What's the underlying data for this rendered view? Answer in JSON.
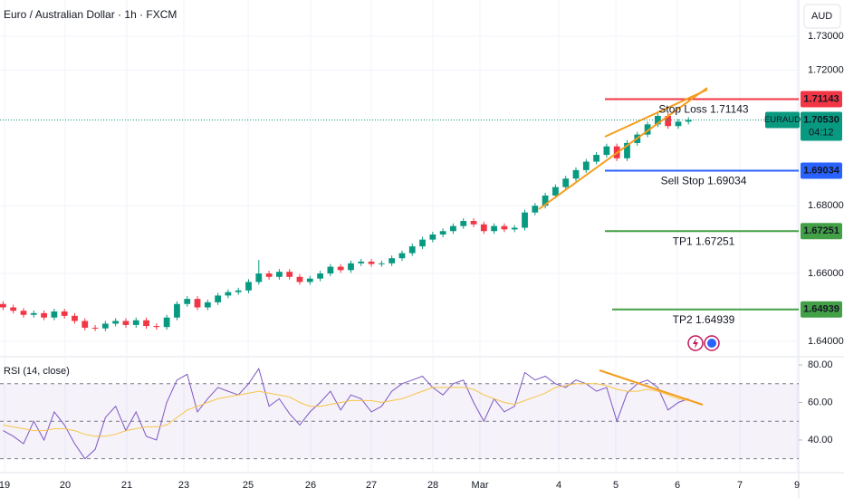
{
  "chart_data": [
    {
      "type": "candlestick",
      "title": "Euro / Australian Dollar · 1h · FXCM",
      "currency": "AUD",
      "x": [
        0,
        1,
        2,
        3,
        4,
        5,
        6,
        7,
        8,
        9,
        10,
        11,
        12,
        13,
        14,
        15,
        16,
        17,
        18,
        19,
        20,
        21,
        22,
        23,
        24,
        25,
        26,
        27,
        28,
        29,
        30,
        31,
        32,
        33,
        34,
        35,
        36,
        37,
        38,
        39,
        40,
        41,
        42,
        43,
        44,
        45,
        46,
        47,
        48,
        49,
        50,
        51,
        52,
        53,
        54,
        55,
        56,
        57,
        58,
        59,
        60,
        61,
        62,
        63,
        64,
        65,
        66,
        67
      ],
      "open": [
        1.651,
        1.65,
        1.649,
        1.6478,
        1.6483,
        1.647,
        1.6488,
        1.6475,
        1.646,
        1.644,
        1.6438,
        1.6452,
        1.646,
        1.6448,
        1.6462,
        1.6445,
        1.6442,
        1.647,
        1.651,
        1.6525,
        1.65,
        1.6515,
        1.6535,
        1.6545,
        1.655,
        1.6575,
        1.66,
        1.659,
        1.6605,
        1.659,
        1.6575,
        1.6585,
        1.66,
        1.662,
        1.661,
        1.663,
        1.6635,
        1.6628,
        1.663,
        1.6645,
        1.666,
        1.668,
        1.67,
        1.6715,
        1.6725,
        1.674,
        1.6755,
        1.6745,
        1.6725,
        1.674,
        1.673,
        1.6735,
        1.678,
        1.68,
        1.683,
        1.6855,
        1.688,
        1.6905,
        1.693,
        1.695,
        1.6975,
        1.694,
        1.6985,
        1.701,
        1.704,
        1.7065,
        1.7035,
        1.7048
      ],
      "high": [
        1.6518,
        1.6508,
        1.6498,
        1.6491,
        1.6491,
        1.6496,
        1.6496,
        1.6483,
        1.6468,
        1.6448,
        1.646,
        1.6468,
        1.6468,
        1.647,
        1.647,
        1.6453,
        1.6478,
        1.6518,
        1.6533,
        1.6533,
        1.6523,
        1.6543,
        1.6553,
        1.6558,
        1.6583,
        1.664,
        1.6608,
        1.6613,
        1.6613,
        1.6598,
        1.6593,
        1.6608,
        1.6628,
        1.6628,
        1.6638,
        1.6643,
        1.6643,
        1.6638,
        1.6653,
        1.6668,
        1.6688,
        1.6708,
        1.6723,
        1.6733,
        1.6748,
        1.6763,
        1.6763,
        1.6753,
        1.6748,
        1.6748,
        1.6743,
        1.6788,
        1.6808,
        1.6838,
        1.6863,
        1.6888,
        1.6913,
        1.6938,
        1.6958,
        1.6983,
        1.6983,
        1.6993,
        1.7018,
        1.7048,
        1.7073,
        1.7073,
        1.7056,
        1.7061
      ],
      "low": [
        1.6492,
        1.6482,
        1.647,
        1.647,
        1.6462,
        1.6462,
        1.6467,
        1.6452,
        1.6432,
        1.643,
        1.643,
        1.6444,
        1.644,
        1.644,
        1.6437,
        1.6434,
        1.6434,
        1.6462,
        1.6502,
        1.6492,
        1.6492,
        1.6507,
        1.6527,
        1.6537,
        1.6542,
        1.6567,
        1.6582,
        1.6582,
        1.6582,
        1.6567,
        1.6567,
        1.6577,
        1.6592,
        1.6602,
        1.6602,
        1.6622,
        1.662,
        1.662,
        1.6622,
        1.6637,
        1.6652,
        1.6672,
        1.6692,
        1.6707,
        1.6717,
        1.6732,
        1.6737,
        1.6717,
        1.6717,
        1.6722,
        1.6722,
        1.6727,
        1.6772,
        1.6792,
        1.6822,
        1.6847,
        1.6872,
        1.6897,
        1.6922,
        1.6942,
        1.6932,
        1.6932,
        1.6977,
        1.7002,
        1.7032,
        1.7027,
        1.7027,
        1.704
      ],
      "close": [
        1.65,
        1.649,
        1.6478,
        1.6483,
        1.647,
        1.6488,
        1.6475,
        1.646,
        1.644,
        1.6438,
        1.6452,
        1.646,
        1.6448,
        1.6462,
        1.6445,
        1.6442,
        1.647,
        1.651,
        1.6525,
        1.65,
        1.6515,
        1.6535,
        1.6545,
        1.655,
        1.6575,
        1.66,
        1.659,
        1.6605,
        1.659,
        1.6575,
        1.6585,
        1.66,
        1.662,
        1.661,
        1.663,
        1.6635,
        1.6628,
        1.663,
        1.6645,
        1.666,
        1.668,
        1.67,
        1.6715,
        1.6725,
        1.674,
        1.6755,
        1.6745,
        1.6725,
        1.674,
        1.673,
        1.6735,
        1.678,
        1.68,
        1.683,
        1.6855,
        1.688,
        1.6905,
        1.693,
        1.695,
        1.6975,
        1.694,
        1.6985,
        1.701,
        1.704,
        1.7065,
        1.7035,
        1.7048,
        1.7053
      ],
      "up_color": "#089981",
      "down_color": "#f23645",
      "xlim": [
        -0.3,
        77.6
      ],
      "xticks": [
        {
          "value": 0.14,
          "label": "19"
        },
        {
          "value": 6.07,
          "label": "20"
        },
        {
          "value": 12.09,
          "label": "21"
        },
        {
          "value": 17.67,
          "label": "23"
        },
        {
          "value": 23.96,
          "label": "25"
        },
        {
          "value": 30.06,
          "label": "26"
        },
        {
          "value": 36.0,
          "label": "27"
        },
        {
          "value": 42.02,
          "label": "28"
        },
        {
          "value": 46.62,
          "label": "Mar"
        },
        {
          "value": 54.32,
          "label": "4"
        },
        {
          "value": 59.9,
          "label": "5"
        },
        {
          "value": 65.92,
          "label": "6"
        },
        {
          "value": 72.03,
          "label": "7"
        },
        {
          "value": 77.6,
          "label": "9"
        }
      ],
      "ylim": [
        1.6357,
        1.7407
      ],
      "yticks": [
        {
          "value": 1.73,
          "label": "1.73000"
        },
        {
          "value": 1.72,
          "label": "1.72000"
        },
        {
          "value": 1.68,
          "label": "1.68000"
        },
        {
          "value": 1.66,
          "label": "1.66000"
        },
        {
          "value": 1.64,
          "label": "1.64000"
        }
      ],
      "levels": [
        {
          "value": 1.71143,
          "text": "Stop Loss 1.71143",
          "color": "#f23645"
        },
        {
          "value": 1.69034,
          "text": "Sell Stop 1.69034",
          "color": "#2962ff"
        },
        {
          "value": 1.67251,
          "text": "TP1 1.67251",
          "color": "#43a047"
        },
        {
          "value": 1.64939,
          "text": "TP2 1.64939",
          "color": "#43a047"
        }
      ],
      "last": {
        "symbol": "EURAUD",
        "price": {
          "value": 1.7053,
          "label": "1.70530"
        },
        "countdown": "04:12",
        "color": "#089981"
      }
    },
    {
      "type": "line",
      "title": "RSI (14, close)",
      "x": [
        0,
        1,
        2,
        3,
        4,
        5,
        6,
        7,
        8,
        9,
        10,
        11,
        12,
        13,
        14,
        15,
        16,
        17,
        18,
        19,
        20,
        21,
        22,
        23,
        24,
        25,
        26,
        27,
        28,
        29,
        30,
        31,
        32,
        33,
        34,
        35,
        36,
        37,
        38,
        39,
        40,
        41,
        42,
        43,
        44,
        45,
        46,
        47,
        48,
        49,
        50,
        51,
        52,
        53,
        54,
        55,
        56,
        57,
        58,
        59,
        60,
        61,
        62,
        63,
        64,
        65,
        66,
        67
      ],
      "series": [
        {
          "color": "#7e57c2",
          "values": [
            45,
            42,
            38,
            50,
            40,
            55,
            48,
            38,
            30,
            35,
            52,
            58,
            45,
            55,
            42,
            40,
            60,
            72,
            75,
            55,
            62,
            68,
            66,
            64,
            70,
            78,
            58,
            62,
            54,
            48,
            55,
            60,
            66,
            56,
            64,
            62,
            55,
            58,
            66,
            70,
            72,
            74,
            68,
            64,
            70,
            72,
            60,
            50,
            62,
            55,
            58,
            76,
            72,
            74,
            70,
            68,
            72,
            70,
            66,
            68,
            50,
            65,
            70,
            72,
            68,
            56,
            60,
            62
          ]
        },
        {
          "color": "#f7c548",
          "values": [
            48,
            47,
            46,
            45,
            45,
            46,
            46,
            45,
            43,
            42,
            42,
            43,
            45,
            46,
            47,
            47,
            48,
            52,
            56,
            58,
            60,
            62,
            63,
            64,
            65,
            66,
            65,
            64,
            63,
            60,
            58,
            58,
            59,
            60,
            61,
            61,
            61,
            60,
            61,
            62,
            64,
            66,
            68,
            68,
            68,
            68,
            67,
            64,
            62,
            60,
            59,
            61,
            63,
            65,
            68,
            69,
            70,
            70,
            70,
            69,
            67,
            66,
            66,
            67,
            66,
            64,
            62,
            61
          ]
        }
      ],
      "xlim": [
        -0.3,
        77.6
      ],
      "ylim": [
        22.6,
        83.9
      ],
      "yticks": [
        {
          "value": 80,
          "label": "80.00"
        },
        {
          "value": 60,
          "label": "60.00"
        },
        {
          "value": 40,
          "label": "40.00"
        }
      ],
      "bands": [
        30,
        50,
        70
      ]
    }
  ]
}
